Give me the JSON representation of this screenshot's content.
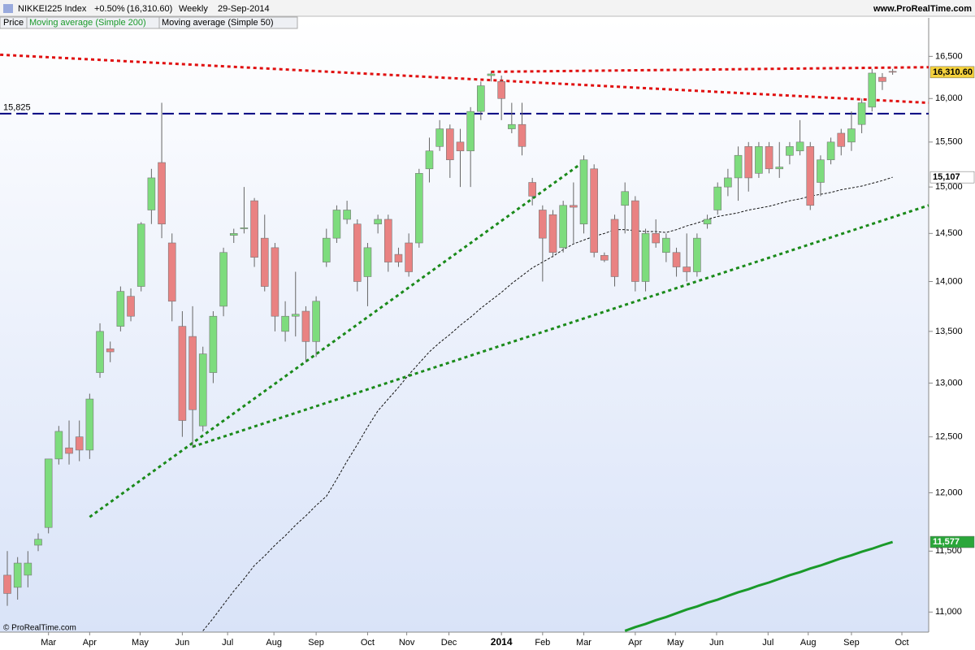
{
  "chart_data": {
    "type": "candlestick",
    "symbol": "NIKKEI225 Index",
    "change": "+0.50%",
    "price": "(16,310.60)",
    "period": "Weekly",
    "date": "29-Sep-2014",
    "site": "www.ProRealTime.com",
    "copyright": "© ProRealTime.com",
    "log": true,
    "ylim": [
      10840,
      16970
    ],
    "yticks": [
      {
        "value": 11000,
        "label": "11,000"
      },
      {
        "value": 11500,
        "label": "11,500"
      },
      {
        "value": 12000,
        "label": "12,000"
      },
      {
        "value": 12500,
        "label": "12,500"
      },
      {
        "value": 13000,
        "label": "13,000"
      },
      {
        "value": 13500,
        "label": "13,500"
      },
      {
        "value": 14000,
        "label": "14,000"
      },
      {
        "value": 14500,
        "label": "14,500"
      },
      {
        "value": 15000,
        "label": "15,000"
      },
      {
        "value": 15500,
        "label": "15,500"
      },
      {
        "value": 16000,
        "label": "16,000"
      },
      {
        "value": 16500,
        "label": "16,500"
      }
    ],
    "xticks": [
      {
        "value": 4,
        "label": "Mar"
      },
      {
        "value": 8,
        "label": "Apr"
      },
      {
        "value": 12.9,
        "label": "May"
      },
      {
        "value": 17,
        "label": "Jun"
      },
      {
        "value": 21.4,
        "label": "Jul"
      },
      {
        "value": 25.9,
        "label": "Aug"
      },
      {
        "value": 30,
        "label": "Sep"
      },
      {
        "value": 35,
        "label": "Oct"
      },
      {
        "value": 38.8,
        "label": "Nov"
      },
      {
        "value": 42.9,
        "label": "Dec"
      },
      {
        "value": 48,
        "label": "2014"
      },
      {
        "value": 52,
        "label": "Feb"
      },
      {
        "value": 56,
        "label": "Mar"
      },
      {
        "value": 61,
        "label": "Apr"
      },
      {
        "value": 64.9,
        "label": "May"
      },
      {
        "value": 68.9,
        "label": "Jun"
      },
      {
        "value": 73.9,
        "label": "Jul"
      },
      {
        "value": 77.8,
        "label": "Aug"
      },
      {
        "value": 82,
        "label": "Sep"
      },
      {
        "value": 86.9,
        "label": "Oct"
      }
    ],
    "candles": {
      "name": "Price",
      "up_color": "#7ddc7d",
      "down_color": "#e98282",
      "last_label": "16,310.60",
      "open": [
        11300,
        11200,
        11300,
        11550,
        11700,
        12300,
        12400,
        12500,
        12380,
        13100,
        13330,
        13550,
        13850,
        13950,
        14750,
        15270,
        14400,
        13550,
        13450,
        12600,
        13100,
        13750,
        14480,
        14550,
        14850,
        14450,
        14350,
        13500,
        13650,
        13700,
        13400,
        14200,
        14450,
        14650,
        14600,
        14050,
        14600,
        14650,
        14280,
        14400,
        14400,
        15200,
        15450,
        15650,
        15500,
        15400,
        15850,
        16270,
        16200,
        15650,
        15700,
        15050,
        14750,
        14700,
        14350,
        14800,
        14600,
        15200,
        14270,
        14650,
        14800,
        14850,
        14000,
        14500,
        14300,
        14300,
        14150,
        14100,
        14600,
        14750,
        15000,
        15100,
        15450,
        15150,
        15450,
        15200,
        15350,
        15400,
        15450,
        15050,
        15300,
        15600,
        15500,
        15700,
        15900,
        16250,
        16320
      ],
      "high": [
        11500,
        11450,
        11500,
        11650,
        12300,
        12600,
        12650,
        12650,
        12900,
        13580,
        13400,
        13950,
        13930,
        14620,
        15200,
        15950,
        14500,
        13700,
        13750,
        13350,
        13700,
        14350,
        14550,
        15000,
        14880,
        14700,
        14400,
        13800,
        14100,
        13750,
        13850,
        14550,
        14800,
        14850,
        14650,
        14400,
        14700,
        14700,
        14350,
        14500,
        15200,
        15550,
        15750,
        15700,
        15650,
        15900,
        16200,
        16320,
        16270,
        15950,
        15950,
        15100,
        14800,
        14750,
        14850,
        15050,
        15350,
        15250,
        14300,
        14700,
        15050,
        14900,
        14550,
        14650,
        14500,
        14350,
        14500,
        14500,
        14700,
        15050,
        15200,
        15450,
        15500,
        15500,
        15500,
        15500,
        15500,
        15750,
        15500,
        15350,
        15550,
        15650,
        15850,
        16000,
        16350,
        16300,
        16350
      ],
      "low": [
        11050,
        11100,
        11200,
        11500,
        11650,
        12250,
        12250,
        12280,
        12300,
        13050,
        13200,
        13500,
        13600,
        13900,
        14600,
        14450,
        13600,
        12500,
        12400,
        12550,
        13000,
        13650,
        14400,
        14500,
        14150,
        13900,
        13500,
        13400,
        13450,
        13200,
        13250,
        14150,
        14400,
        14600,
        13900,
        13750,
        14500,
        14100,
        14150,
        14050,
        14350,
        15050,
        15400,
        15100,
        15000,
        15000,
        15750,
        16200,
        15750,
        15600,
        15350,
        14800,
        14000,
        14250,
        14300,
        14400,
        14500,
        14250,
        14200,
        13950,
        14500,
        13900,
        13900,
        14350,
        14200,
        14050,
        14000,
        14050,
        14550,
        14700,
        14900,
        14850,
        14950,
        15100,
        15150,
        15100,
        15250,
        15350,
        14750,
        14900,
        15250,
        15350,
        15400,
        15600,
        15850,
        16100,
        16280
      ],
      "close": [
        11150,
        11400,
        11400,
        11600,
        12300,
        12550,
        12350,
        12380,
        12850,
        13500,
        13300,
        13900,
        13650,
        14600,
        15100,
        14600,
        13800,
        12650,
        12750,
        13280,
        13650,
        14300,
        14500,
        14560,
        14250,
        13950,
        13650,
        13650,
        13670,
        13400,
        13800,
        14450,
        14750,
        14750,
        14000,
        14350,
        14650,
        14200,
        14200,
        14100,
        15150,
        15400,
        15650,
        15300,
        15400,
        15850,
        16150,
        16290,
        16000,
        15700,
        15450,
        14900,
        14450,
        14300,
        14800,
        14780,
        15300,
        14300,
        14220,
        14050,
        14950,
        14000,
        14500,
        14400,
        14450,
        14150,
        14100,
        14450,
        14650,
        15000,
        15100,
        15350,
        15100,
        15450,
        15200,
        15220,
        15450,
        15500,
        14800,
        15300,
        15500,
        15450,
        15650,
        15950,
        16300,
        16200,
        16310.6
      ]
    },
    "series": [
      {
        "name": "Moving average (Simple 200)",
        "color": "#1a9a2a",
        "width": 3,
        "last_label": "11,577",
        "values": [
          null,
          null,
          null,
          null,
          null,
          null,
          null,
          null,
          null,
          null,
          null,
          null,
          null,
          null,
          null,
          null,
          null,
          null,
          null,
          null,
          null,
          null,
          null,
          null,
          null,
          null,
          null,
          null,
          null,
          null,
          null,
          null,
          null,
          null,
          null,
          null,
          null,
          null,
          null,
          null,
          null,
          null,
          null,
          null,
          null,
          null,
          null,
          null,
          null,
          null,
          null,
          null,
          null,
          null,
          null,
          null,
          null,
          null,
          null,
          null,
          10850,
          10880,
          10905,
          10935,
          10960,
          10990,
          11020,
          11045,
          11075,
          11100,
          11130,
          11160,
          11185,
          11215,
          11240,
          11270,
          11300,
          11325,
          11355,
          11380,
          11410,
          11440,
          11465,
          11495,
          11520,
          11550,
          11577
        ]
      },
      {
        "name": "Moving average (Simple 50)",
        "color": "#111111",
        "width": 1,
        "dash": true,
        "last_label": "15,107",
        "values": [
          null,
          null,
          null,
          null,
          null,
          null,
          null,
          null,
          null,
          null,
          null,
          null,
          null,
          null,
          null,
          null,
          null,
          null,
          null,
          10850,
          10950,
          11060,
          11170,
          11270,
          11380,
          11460,
          11550,
          11630,
          11720,
          11800,
          11890,
          11970,
          12120,
          12280,
          12430,
          12590,
          12740,
          12850,
          12960,
          13080,
          13190,
          13300,
          13390,
          13470,
          13560,
          13640,
          13730,
          13810,
          13890,
          13980,
          14060,
          14140,
          14200,
          14260,
          14330,
          14390,
          14430,
          14470,
          14500,
          14540,
          14540,
          14530,
          14520,
          14520,
          14510,
          14540,
          14580,
          14610,
          14650,
          14680,
          14700,
          14720,
          14750,
          14770,
          14790,
          14820,
          14850,
          14870,
          14900,
          14920,
          14940,
          14970,
          14990,
          15010,
          15040,
          15070,
          15107
        ]
      }
    ],
    "trend_lines": [
      {
        "color": "#e01010",
        "x": [
          -0.7,
          89.5
        ],
        "y": [
          16520,
          15950
        ]
      },
      {
        "color": "#e01010",
        "x": [
          47,
          89.5
        ],
        "y": [
          16315,
          16370
        ]
      },
      {
        "color": "#1a8a1a",
        "x": [
          8,
          56
        ],
        "y": [
          11790,
          15280
        ]
      },
      {
        "color": "#1a8a1a",
        "x": [
          18,
          89.5
        ],
        "y": [
          12410,
          14800
        ]
      }
    ],
    "levels": [
      {
        "value": 15825,
        "label": "15,825",
        "color": "#000080"
      }
    ]
  }
}
